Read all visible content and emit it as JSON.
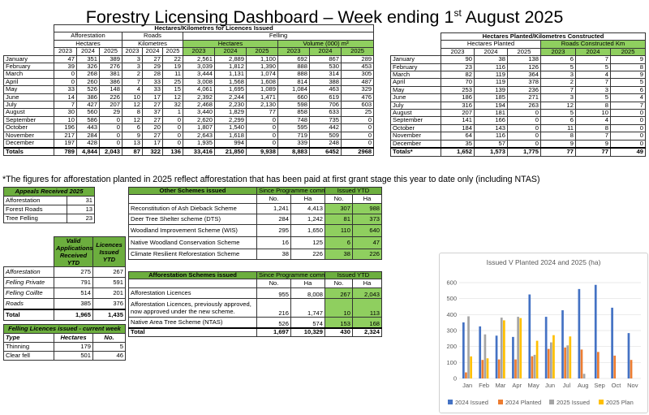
{
  "title": {
    "main": "Forestry Licensing Dashboard – Week ending 1",
    "sup": "st",
    "tail": " August 2025"
  },
  "main_table": {
    "caption": "Hectares/Kilometres for Licences Issued",
    "groups": {
      "afforestation": "Afforestation",
      "roads": "Roads",
      "felling": "Felling"
    },
    "subgroups": {
      "aff_unit": "Hectares",
      "roads_unit": "Kilometres",
      "fell_unit": "Hectares",
      "vol_unit": "Volume (000) m³"
    },
    "years": [
      "2023",
      "2024",
      "2025"
    ],
    "rows": [
      {
        "m": "January",
        "v": [
          "47",
          "351",
          "389",
          "3",
          "27",
          "22",
          "2,561",
          "2,889",
          "1,100",
          "692",
          "867",
          "289"
        ]
      },
      {
        "m": "February",
        "v": [
          "39",
          "326",
          "276",
          "3",
          "29",
          "19",
          "3,039",
          "1,812",
          "1,390",
          "888",
          "530",
          "453"
        ]
      },
      {
        "m": "March",
        "v": [
          "0",
          "268",
          "381",
          "2",
          "28",
          "11",
          "3,444",
          "1,131",
          "1,074",
          "888",
          "314",
          "305"
        ]
      },
      {
        "m": "April",
        "v": [
          "0",
          "260",
          "386",
          "7",
          "33",
          "25",
          "3,008",
          "1,568",
          "1,608",
          "814",
          "388",
          "487"
        ]
      },
      {
        "m": "May",
        "v": [
          "33",
          "526",
          "148",
          "4",
          "33",
          "15",
          "4,061",
          "1,695",
          "1,089",
          "1,084",
          "463",
          "329"
        ]
      },
      {
        "m": "June",
        "v": [
          "14",
          "386",
          "226",
          "10",
          "17",
          "12",
          "2,392",
          "2,244",
          "1,471",
          "660",
          "619",
          "476"
        ]
      },
      {
        "m": "July",
        "v": [
          "7",
          "427",
          "207",
          "12",
          "27",
          "32",
          "2,468",
          "2,230",
          "2,130",
          "598",
          "706",
          "603"
        ]
      },
      {
        "m": "August",
        "v": [
          "30",
          "560",
          "29",
          "8",
          "37",
          "1",
          "3,440",
          "1,829",
          "77",
          "858",
          "633",
          "25"
        ]
      },
      {
        "m": "September",
        "v": [
          "10",
          "586",
          "0",
          "12",
          "27",
          "0",
          "2,620",
          "2,299",
          "0",
          "748",
          "735",
          "0"
        ]
      },
      {
        "m": "October",
        "v": [
          "196",
          "443",
          "0",
          "6",
          "20",
          "0",
          "1,807",
          "1,540",
          "0",
          "595",
          "442",
          "0"
        ]
      },
      {
        "m": "November",
        "v": [
          "217",
          "284",
          "0",
          "9",
          "27",
          "0",
          "2,643",
          "1,618",
          "0",
          "719",
          "509",
          "0"
        ]
      },
      {
        "m": "December",
        "v": [
          "197",
          "428",
          "0",
          "13",
          "17",
          "0",
          "1,935",
          "994",
          "0",
          "339",
          "248",
          "0"
        ]
      }
    ],
    "totals": {
      "m": "Totals",
      "v": [
        "789",
        "4,844",
        "2,043",
        "87",
        "322",
        "136",
        "33,416",
        "21,850",
        "9,938",
        "8,883",
        "6452",
        "2968"
      ]
    }
  },
  "planted_table": {
    "caption": "Hectares Planted/Kilometres Constructed",
    "sub1": "Hectares Planted",
    "sub2": "Roads Constructed Km",
    "years": [
      "2023",
      "2024",
      "2025"
    ],
    "rows": [
      {
        "m": "January",
        "v": [
          "90",
          "38",
          "138",
          "6",
          "7",
          "9"
        ]
      },
      {
        "m": "February",
        "v": [
          "23",
          "116",
          "126",
          "5",
          "5",
          "8"
        ]
      },
      {
        "m": "March",
        "v": [
          "82",
          "119",
          "364",
          "3",
          "4",
          "9"
        ]
      },
      {
        "m": "April",
        "v": [
          "70",
          "119",
          "378",
          "2",
          "7",
          "5"
        ]
      },
      {
        "m": "May",
        "v": [
          "253",
          "139",
          "236",
          "7",
          "3",
          "6"
        ]
      },
      {
        "m": "June",
        "v": [
          "186",
          "185",
          "271",
          "3",
          "5",
          "4"
        ]
      },
      {
        "m": "July",
        "v": [
          "316",
          "194",
          "263",
          "12",
          "8",
          "7"
        ]
      },
      {
        "m": "August",
        "v": [
          "207",
          "181",
          "0",
          "5",
          "10",
          "0"
        ]
      },
      {
        "m": "September",
        "v": [
          "141",
          "166",
          "0",
          "6",
          "4",
          "0"
        ]
      },
      {
        "m": "October",
        "v": [
          "184",
          "143",
          "0",
          "11",
          "8",
          "0"
        ]
      },
      {
        "m": "November",
        "v": [
          "64",
          "116",
          "0",
          "8",
          "7",
          "0"
        ]
      },
      {
        "m": "December",
        "v": [
          "35",
          "57",
          "0",
          "9",
          "9",
          "0"
        ]
      }
    ],
    "totals": {
      "m": "Totals*",
      "v": [
        "1,652",
        "1,573",
        "1,775",
        "77",
        "77",
        "49"
      ]
    }
  },
  "footnote": "*The figures for afforestation planted in 2025 reflect afforestation that has been paid at first grant stage this year to date only (including NTAS)",
  "appeals": {
    "caption": "Appeals Received 2025",
    "rows": [
      {
        "label": "Afforestation",
        "value": "31"
      },
      {
        "label": "Forest Roads",
        "value": "13"
      },
      {
        "label": "Tree Felling",
        "value": "23"
      }
    ]
  },
  "valid_apps": {
    "col1": "Valid Applications Received YTD",
    "col2": "Licences Issued YTD",
    "rows": [
      {
        "label": "Afforestation",
        "a": "275",
        "b": "267"
      },
      {
        "label": "Felling Private",
        "a": "791",
        "b": "591"
      },
      {
        "label": "Felling Coillte",
        "a": "514",
        "b": "201"
      },
      {
        "label": "Roads",
        "a": "385",
        "b": "376"
      }
    ],
    "total": {
      "label": "Total",
      "a": "1,965",
      "b": "1,435"
    }
  },
  "felling_week": {
    "caption": "Felling Licences issued - current week",
    "headers": [
      "Type",
      "Hectares",
      "No."
    ],
    "rows": [
      {
        "label": "Thinning",
        "ha": "179",
        "no": "5"
      },
      {
        "label": "Clear fell",
        "ha": "501",
        "no": "46"
      }
    ]
  },
  "other_schemes": {
    "caption": "Other Schemes issued",
    "since": "Since Programme commenced",
    "ytd": "Issued YTD",
    "no": "No.",
    "ha": "Ha",
    "rows": [
      {
        "label": "Reconstitution of Ash Dieback Scheme",
        "a": "1,241",
        "b": "4,413",
        "c": "307",
        "d": "988"
      },
      {
        "label": "Deer Tree Shelter scheme (DTS)",
        "a": "284",
        "b": "1,242",
        "c": "81",
        "d": "373"
      },
      {
        "label": "Woodland Improvement Scheme (WIS)",
        "a": "295",
        "b": "1,650",
        "c": "110",
        "d": "640"
      },
      {
        "label": "Native Woodland Conservation Scheme",
        "a": "16",
        "b": "125",
        "c": "6",
        "d": "47"
      },
      {
        "label": "Climate Resilient Reforestation Scheme",
        "a": "38",
        "b": "226",
        "c": "38",
        "d": "226"
      }
    ]
  },
  "aff_schemes": {
    "caption": "Afforestation Schemes issued",
    "since": "Since Programme commenced",
    "ytd": "Issued YTD",
    "no": "No.",
    "ha": "Ha",
    "rows": [
      {
        "label": "Afforestation Licences",
        "a": "955",
        "b": "8,008",
        "c": "267",
        "d": "2,043"
      },
      {
        "label": "Afforestation Licences, previously approved, now approved under the new scheme.",
        "a": "216",
        "b": "1,747",
        "c": "10",
        "d": "113"
      },
      {
        "label": "Native Area Tree Scheme (NTAS)",
        "a": "526",
        "b": "574",
        "c": "153",
        "d": "168"
      }
    ],
    "total": {
      "label": "Total",
      "a": "1,697",
      "b": "10,329",
      "c": "430",
      "d": "2,324"
    }
  },
  "chart_data": {
    "type": "bar",
    "title": "Issued V Planted 2024 and 2025 (ha)",
    "categories": [
      "Jan",
      "Feb",
      "Mar",
      "Apr",
      "May",
      "Jun",
      "Jul",
      "Aug",
      "Sep",
      "Oct",
      "Nov"
    ],
    "ylim": [
      0,
      600
    ],
    "yticks": [
      "0",
      "100",
      "200",
      "300",
      "400",
      "500",
      "600"
    ],
    "grid": true,
    "legend_position": "bottom",
    "series": [
      {
        "name": "2024 Issued",
        "color": "#4472c4",
        "values": [
          351,
          326,
          268,
          260,
          526,
          386,
          427,
          560,
          586,
          443,
          284
        ]
      },
      {
        "name": "2024 Planted",
        "color": "#ed7d31",
        "values": [
          38,
          116,
          119,
          119,
          139,
          185,
          194,
          181,
          166,
          143,
          116
        ]
      },
      {
        "name": "2025 Issued",
        "color": "#a5a5a5",
        "values": [
          389,
          276,
          381,
          386,
          148,
          226,
          207,
          29,
          0,
          0,
          0
        ]
      },
      {
        "name": "2025 Plan",
        "color": "#ffc000",
        "values": [
          138,
          126,
          364,
          378,
          236,
          271,
          263,
          0,
          0,
          0,
          0
        ]
      }
    ]
  }
}
